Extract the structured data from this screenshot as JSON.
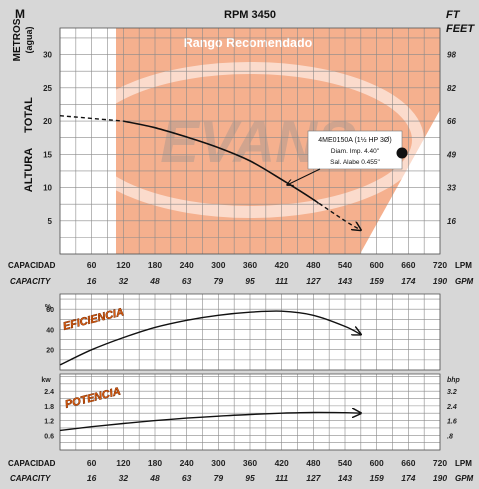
{
  "header": {
    "title": "RPM 3450",
    "left_units": "M",
    "right_units_line1": "FT",
    "right_units_line2": "FEET"
  },
  "axes": {
    "y_left_title": "METROS",
    "y_left_sub": "(agua)",
    "y_side_1": "TOTAL",
    "y_side_2": "ALTURA",
    "x_row1_label": "CAPACIDAD",
    "x_row1_unit": "LPM",
    "x_row2_label": "CAPACITY",
    "x_row2_unit": "GPM"
  },
  "legend": {
    "line1": "4ME0150A (1½ HP 3Ø)",
    "line2": "Diam. Imp. 4.40\"",
    "line3": "Sal. Alabe 0.455\""
  },
  "recommended_label": "Rango Recomendado",
  "background_logo": "EVANS",
  "chart_data": [
    {
      "type": "line",
      "name": "head",
      "x_unit": "LPM",
      "xlim": [
        0,
        720
      ],
      "ylim": [
        0,
        34
      ],
      "y_ticks": [
        5,
        10,
        15,
        20,
        25,
        30
      ],
      "y_right_ticks": [
        16,
        33,
        49,
        66,
        82,
        98
      ],
      "x_ticks_lpm": [
        60,
        120,
        180,
        240,
        300,
        360,
        420,
        480,
        540,
        600,
        660,
        720
      ],
      "x_ticks_gpm": [
        16,
        32,
        48,
        63,
        79,
        95,
        111,
        127,
        143,
        159,
        174,
        190
      ],
      "recommended_range_lpm": [
        110,
        720
      ],
      "series": [
        {
          "x": [
            0,
            120,
            180,
            240,
            300,
            360,
            420,
            480,
            490
          ],
          "y": [
            20.8,
            20,
            19,
            17.6,
            16,
            14,
            11.2,
            8.2,
            7.6
          ]
        },
        {
          "x": [
            480,
            540,
            570
          ],
          "y": [
            8.2,
            5,
            3.6
          ]
        }
      ]
    },
    {
      "type": "line",
      "name": "efficiency",
      "label": "EFICIENCIA",
      "y_unit": "%",
      "xlim": [
        0,
        720
      ],
      "ylim": [
        0,
        75
      ],
      "y_ticks": [
        20,
        40,
        60
      ],
      "series": [
        {
          "x": [
            0,
            60,
            120,
            180,
            240,
            300,
            360,
            420,
            480,
            540,
            570
          ],
          "y": [
            5,
            20,
            32,
            42,
            49,
            54,
            57,
            58,
            54,
            43,
            35
          ]
        }
      ]
    },
    {
      "type": "line",
      "name": "power",
      "label": "POTENCIA",
      "y_unit_left": "kw",
      "y_unit_right": "bhp",
      "xlim": [
        0,
        720
      ],
      "ylim": [
        0,
        3.1
      ],
      "y_ticks": [
        0.6,
        1.2,
        1.8,
        2.4
      ],
      "y_right_ticks": [
        ".8",
        "1.6",
        "2.4",
        "3.2"
      ],
      "series": [
        {
          "x": [
            0,
            60,
            120,
            180,
            240,
            300,
            360,
            420,
            480,
            540,
            570
          ],
          "y": [
            0.8,
            0.95,
            1.08,
            1.2,
            1.3,
            1.38,
            1.45,
            1.5,
            1.53,
            1.52,
            1.5
          ]
        }
      ]
    }
  ]
}
